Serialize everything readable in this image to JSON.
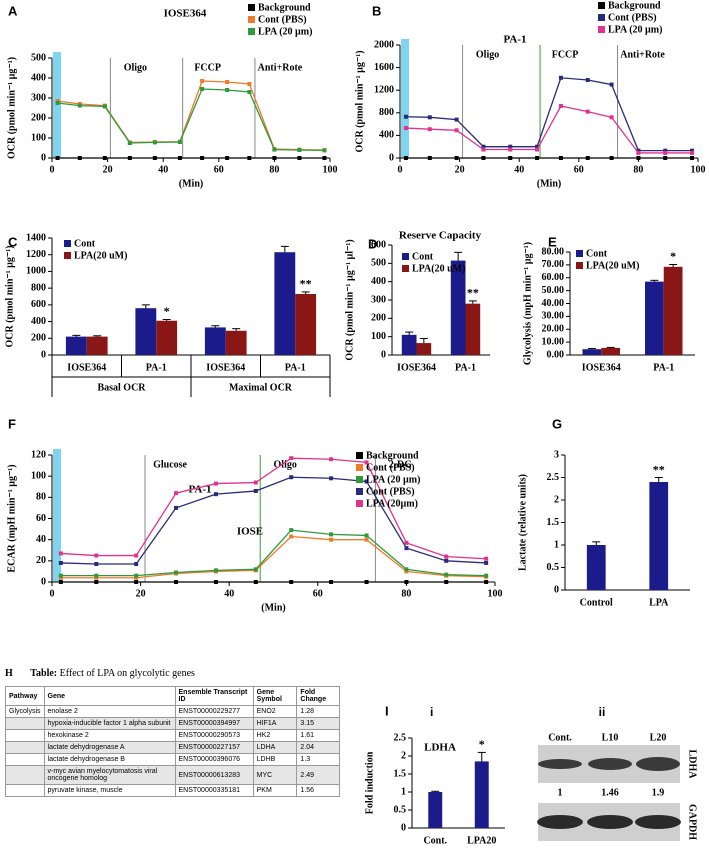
{
  "chart_data": [
    {
      "panel": "A",
      "type": "line",
      "title": "IOSE364",
      "xlabel": "(Min)",
      "ylabel": "OCR (pmol min⁻¹ µg⁻¹)",
      "x": [
        2,
        10,
        19,
        28,
        37,
        46,
        54,
        63,
        71,
        80,
        89,
        98
      ],
      "xlim": [
        0,
        100
      ],
      "xticks": [
        0,
        20,
        40,
        60,
        80,
        100
      ],
      "ylim": [
        0,
        500
      ],
      "yticks": [
        0,
        100,
        200,
        300,
        400,
        500
      ],
      "markers": [
        {
          "label": "Oligo",
          "x": 21
        },
        {
          "label": "FCCP",
          "x": 47
        },
        {
          "label": "Anti+Rote",
          "x": 73
        }
      ],
      "series": [
        {
          "name": "Background",
          "color": "#000000",
          "values": [
            0,
            0,
            0,
            0,
            0,
            0,
            0,
            0,
            0,
            0,
            0,
            0
          ]
        },
        {
          "name": "Cont (PBS)",
          "color": "#f07a2a",
          "values": [
            285,
            270,
            262,
            78,
            80,
            82,
            385,
            380,
            370,
            45,
            42,
            40
          ]
        },
        {
          "name": "LPA (20 µm)",
          "color": "#2f9a3a",
          "values": [
            275,
            262,
            258,
            75,
            78,
            80,
            345,
            340,
            330,
            42,
            40,
            38
          ]
        }
      ]
    },
    {
      "panel": "B",
      "type": "line",
      "title": "PA-1",
      "xlabel": "(Min)",
      "ylabel": "OCR (pmol min⁻¹ µg⁻¹)",
      "x": [
        2,
        10,
        19,
        28,
        37,
        46,
        54,
        63,
        71,
        80,
        89,
        98
      ],
      "xlim": [
        0,
        100
      ],
      "xticks": [
        0,
        20,
        40,
        60,
        80,
        100
      ],
      "ylim": [
        0,
        2000
      ],
      "yticks": [
        0,
        400,
        800,
        1200,
        1600,
        2000
      ],
      "markers": [
        {
          "label": "Oligo",
          "x": 21
        },
        {
          "label": "FCCP",
          "x": 47
        },
        {
          "label": "Anti+Rote",
          "x": 73
        }
      ],
      "series": [
        {
          "name": "Background",
          "color": "#000000",
          "values": [
            0,
            0,
            0,
            0,
            0,
            0,
            0,
            0,
            0,
            0,
            0,
            0
          ]
        },
        {
          "name": "Cont (PBS)",
          "color": "#2a2a7a",
          "values": [
            730,
            720,
            680,
            200,
            200,
            200,
            1420,
            1380,
            1300,
            130,
            130,
            130
          ]
        },
        {
          "name": "LPA (20 µm)",
          "color": "#e0338f",
          "values": [
            530,
            510,
            490,
            150,
            150,
            150,
            920,
            820,
            720,
            90,
            90,
            90
          ]
        }
      ]
    },
    {
      "panel": "C",
      "type": "bar",
      "ylabel": "OCR (pmol min⁻¹ µg⁻¹)",
      "categories": [
        "IOSE364",
        "PA-1",
        "IOSE364",
        "PA-1"
      ],
      "groups": [
        "Basal OCR",
        "Maximal OCR"
      ],
      "ylim": [
        0,
        1400
      ],
      "yticks": [
        0,
        200,
        400,
        600,
        800,
        1000,
        1200,
        1400
      ],
      "series": [
        {
          "name": "Cont",
          "color": "#1b1b8c",
          "values": [
            220,
            560,
            330,
            1230
          ],
          "errors": [
            15,
            40,
            20,
            70
          ]
        },
        {
          "name": "LPA(20 uM)",
          "color": "#8b1616",
          "values": [
            220,
            410,
            290,
            730
          ],
          "errors": [
            10,
            15,
            25,
            25
          ],
          "significance": [
            null,
            "*",
            null,
            "**"
          ]
        }
      ]
    },
    {
      "panel": "D",
      "type": "bar",
      "title": "Reserve Capacity",
      "ylabel": "OCR (pmol min⁻¹ µg⁻¹ µl⁻¹)",
      "categories": [
        "IOSE364",
        "PA-1"
      ],
      "ylim": [
        0,
        600
      ],
      "yticks": [
        0,
        100,
        200,
        300,
        400,
        500,
        600
      ],
      "series": [
        {
          "name": "Cont",
          "color": "#1b1b8c",
          "values": [
            110,
            515
          ],
          "errors": [
            15,
            45
          ]
        },
        {
          "name": "LPA(20 uM)",
          "color": "#8b1616",
          "values": [
            65,
            280
          ],
          "errors": [
            25,
            15
          ],
          "significance": [
            null,
            "**"
          ]
        }
      ]
    },
    {
      "panel": "E",
      "type": "bar",
      "ylabel": "Glycolysis (mpH min⁻¹ µg⁻¹)",
      "categories": [
        "IOSE364",
        "PA-1"
      ],
      "ylim": [
        0,
        80
      ],
      "yticks": [
        {
          "value": 0,
          "label": "0.00"
        },
        {
          "value": 10,
          "label": "10.00"
        },
        {
          "value": 20,
          "label": "20.00"
        },
        {
          "value": 30,
          "label": "30.00"
        },
        {
          "value": 40,
          "label": "40.00"
        },
        {
          "value": 50,
          "label": "50.00"
        },
        {
          "value": 60,
          "label": "60.00"
        },
        {
          "value": 70,
          "label": "70.00"
        },
        {
          "value": 80,
          "label": "80.00"
        }
      ],
      "series": [
        {
          "name": "Cont",
          "color": "#1b1b8c",
          "values": [
            4.5,
            57
          ],
          "errors": [
            0.5,
            1
          ]
        },
        {
          "name": "LPA(20 uM)",
          "color": "#8b1616",
          "values": [
            5.5,
            68.5
          ],
          "errors": [
            0.4,
            1.8
          ],
          "significance": [
            null,
            "*"
          ]
        }
      ]
    },
    {
      "panel": "F",
      "type": "line",
      "xlabel": "(Min)",
      "ylabel": "ECAR (mpH min⁻¹ µg⁻¹)",
      "x": [
        2,
        10,
        19,
        28,
        37,
        46,
        54,
        63,
        71,
        80,
        89,
        98
      ],
      "xlim": [
        0,
        100
      ],
      "xticks": [
        0,
        20,
        40,
        60,
        80,
        100
      ],
      "ylim": [
        0,
        120
      ],
      "yticks": [
        0,
        20,
        40,
        60,
        80,
        100,
        120
      ],
      "markers": [
        {
          "label": "Glucose",
          "x": 21
        },
        {
          "label": "Oligo",
          "x": 47
        },
        {
          "label": "2-DG",
          "x": 73
        }
      ],
      "labels": [
        "PA-1",
        "IOSE"
      ],
      "series": [
        {
          "name": "Background",
          "color": "#000000",
          "values": [
            0,
            0,
            0,
            0,
            0,
            0,
            0,
            0,
            0,
            0,
            0,
            0
          ]
        },
        {
          "name": "Cont (PBS)",
          "color": "#f07a2a",
          "values": [
            4,
            4,
            4,
            8,
            10,
            11,
            43,
            40,
            40,
            10,
            6,
            5
          ]
        },
        {
          "name": "LPA (20 µm)",
          "color": "#2f9a3a",
          "values": [
            6,
            6,
            6,
            9,
            11,
            12,
            49,
            45,
            44,
            12,
            7,
            6
          ]
        },
        {
          "name": "Cont (PBS)",
          "color": "#2a2a7a",
          "values": [
            18,
            17,
            17,
            70,
            83,
            86,
            99,
            98,
            95,
            32,
            20,
            18
          ]
        },
        {
          "name": "LPA (20µm)",
          "color": "#e0338f",
          "values": [
            27,
            25,
            25,
            84,
            93,
            94,
            117,
            116,
            113,
            37,
            24,
            22
          ]
        }
      ]
    },
    {
      "panel": "G",
      "type": "bar",
      "ylabel": "Lactate (relative units)",
      "categories": [
        "Control",
        "LPA"
      ],
      "ylim": [
        0,
        3
      ],
      "yticks": [
        0,
        0.5,
        1,
        1.5,
        2,
        2.5,
        3
      ],
      "series": [
        {
          "color": "#1b1b8c",
          "values": [
            1,
            2.4
          ],
          "errors": [
            0.07,
            0.1
          ],
          "significance": [
            null,
            "**"
          ]
        }
      ]
    },
    {
      "panel": "I",
      "subpanel": "i",
      "type": "bar",
      "title": "LDHA",
      "ylabel": "Fold induction",
      "categories": [
        "Cont.",
        "LPA20"
      ],
      "ylim": [
        0,
        2.5
      ],
      "yticks": [
        0,
        0.5,
        1,
        1.5,
        2,
        2.5
      ],
      "series": [
        {
          "color": "#1b1b8c",
          "values": [
            1,
            1.85
          ],
          "errors": [
            0.02,
            0.25
          ],
          "significance": [
            null,
            "*"
          ]
        }
      ]
    }
  ],
  "table": {
    "panel": "H",
    "title_prefix": "Table:",
    "title": "Effect of LPA on glycolytic genes",
    "header": [
      "Pathway",
      "Gene",
      "Ensemble Transcript ID",
      "Gene Symbol",
      "Fold Change"
    ],
    "rows": [
      [
        "Glycolysis",
        "enolase 2",
        "ENST00000229277",
        "ENO2",
        1.28
      ],
      [
        null,
        "hypoxia-inducible factor 1 alpha subunit",
        "ENST00000394997",
        "HIF1A",
        3.15
      ],
      [
        null,
        "hexokinase 2",
        "ENST00000290573",
        "HK2",
        1.61
      ],
      [
        null,
        "lactate dehydrogenase A",
        "ENST00000227157",
        "LDHA",
        2.04
      ],
      [
        null,
        "lactate dehydrogenase B",
        "ENST00000396076",
        "LDHB",
        1.3
      ],
      [
        null,
        "v-myc avian myelocytomatosis viral oncogene homolog",
        "ENST00000613283",
        "MYC",
        2.49
      ],
      [
        null,
        "pyruvate kinase, muscle",
        "ENST00000335181",
        "PKM",
        1.56
      ]
    ]
  },
  "blot": {
    "subpanel": "ii",
    "lanes": [
      "Cont.",
      "L10",
      "L20"
    ],
    "values": [
      1,
      1.46,
      1.9
    ],
    "bands": [
      "LDHA",
      "GAPDH"
    ]
  }
}
